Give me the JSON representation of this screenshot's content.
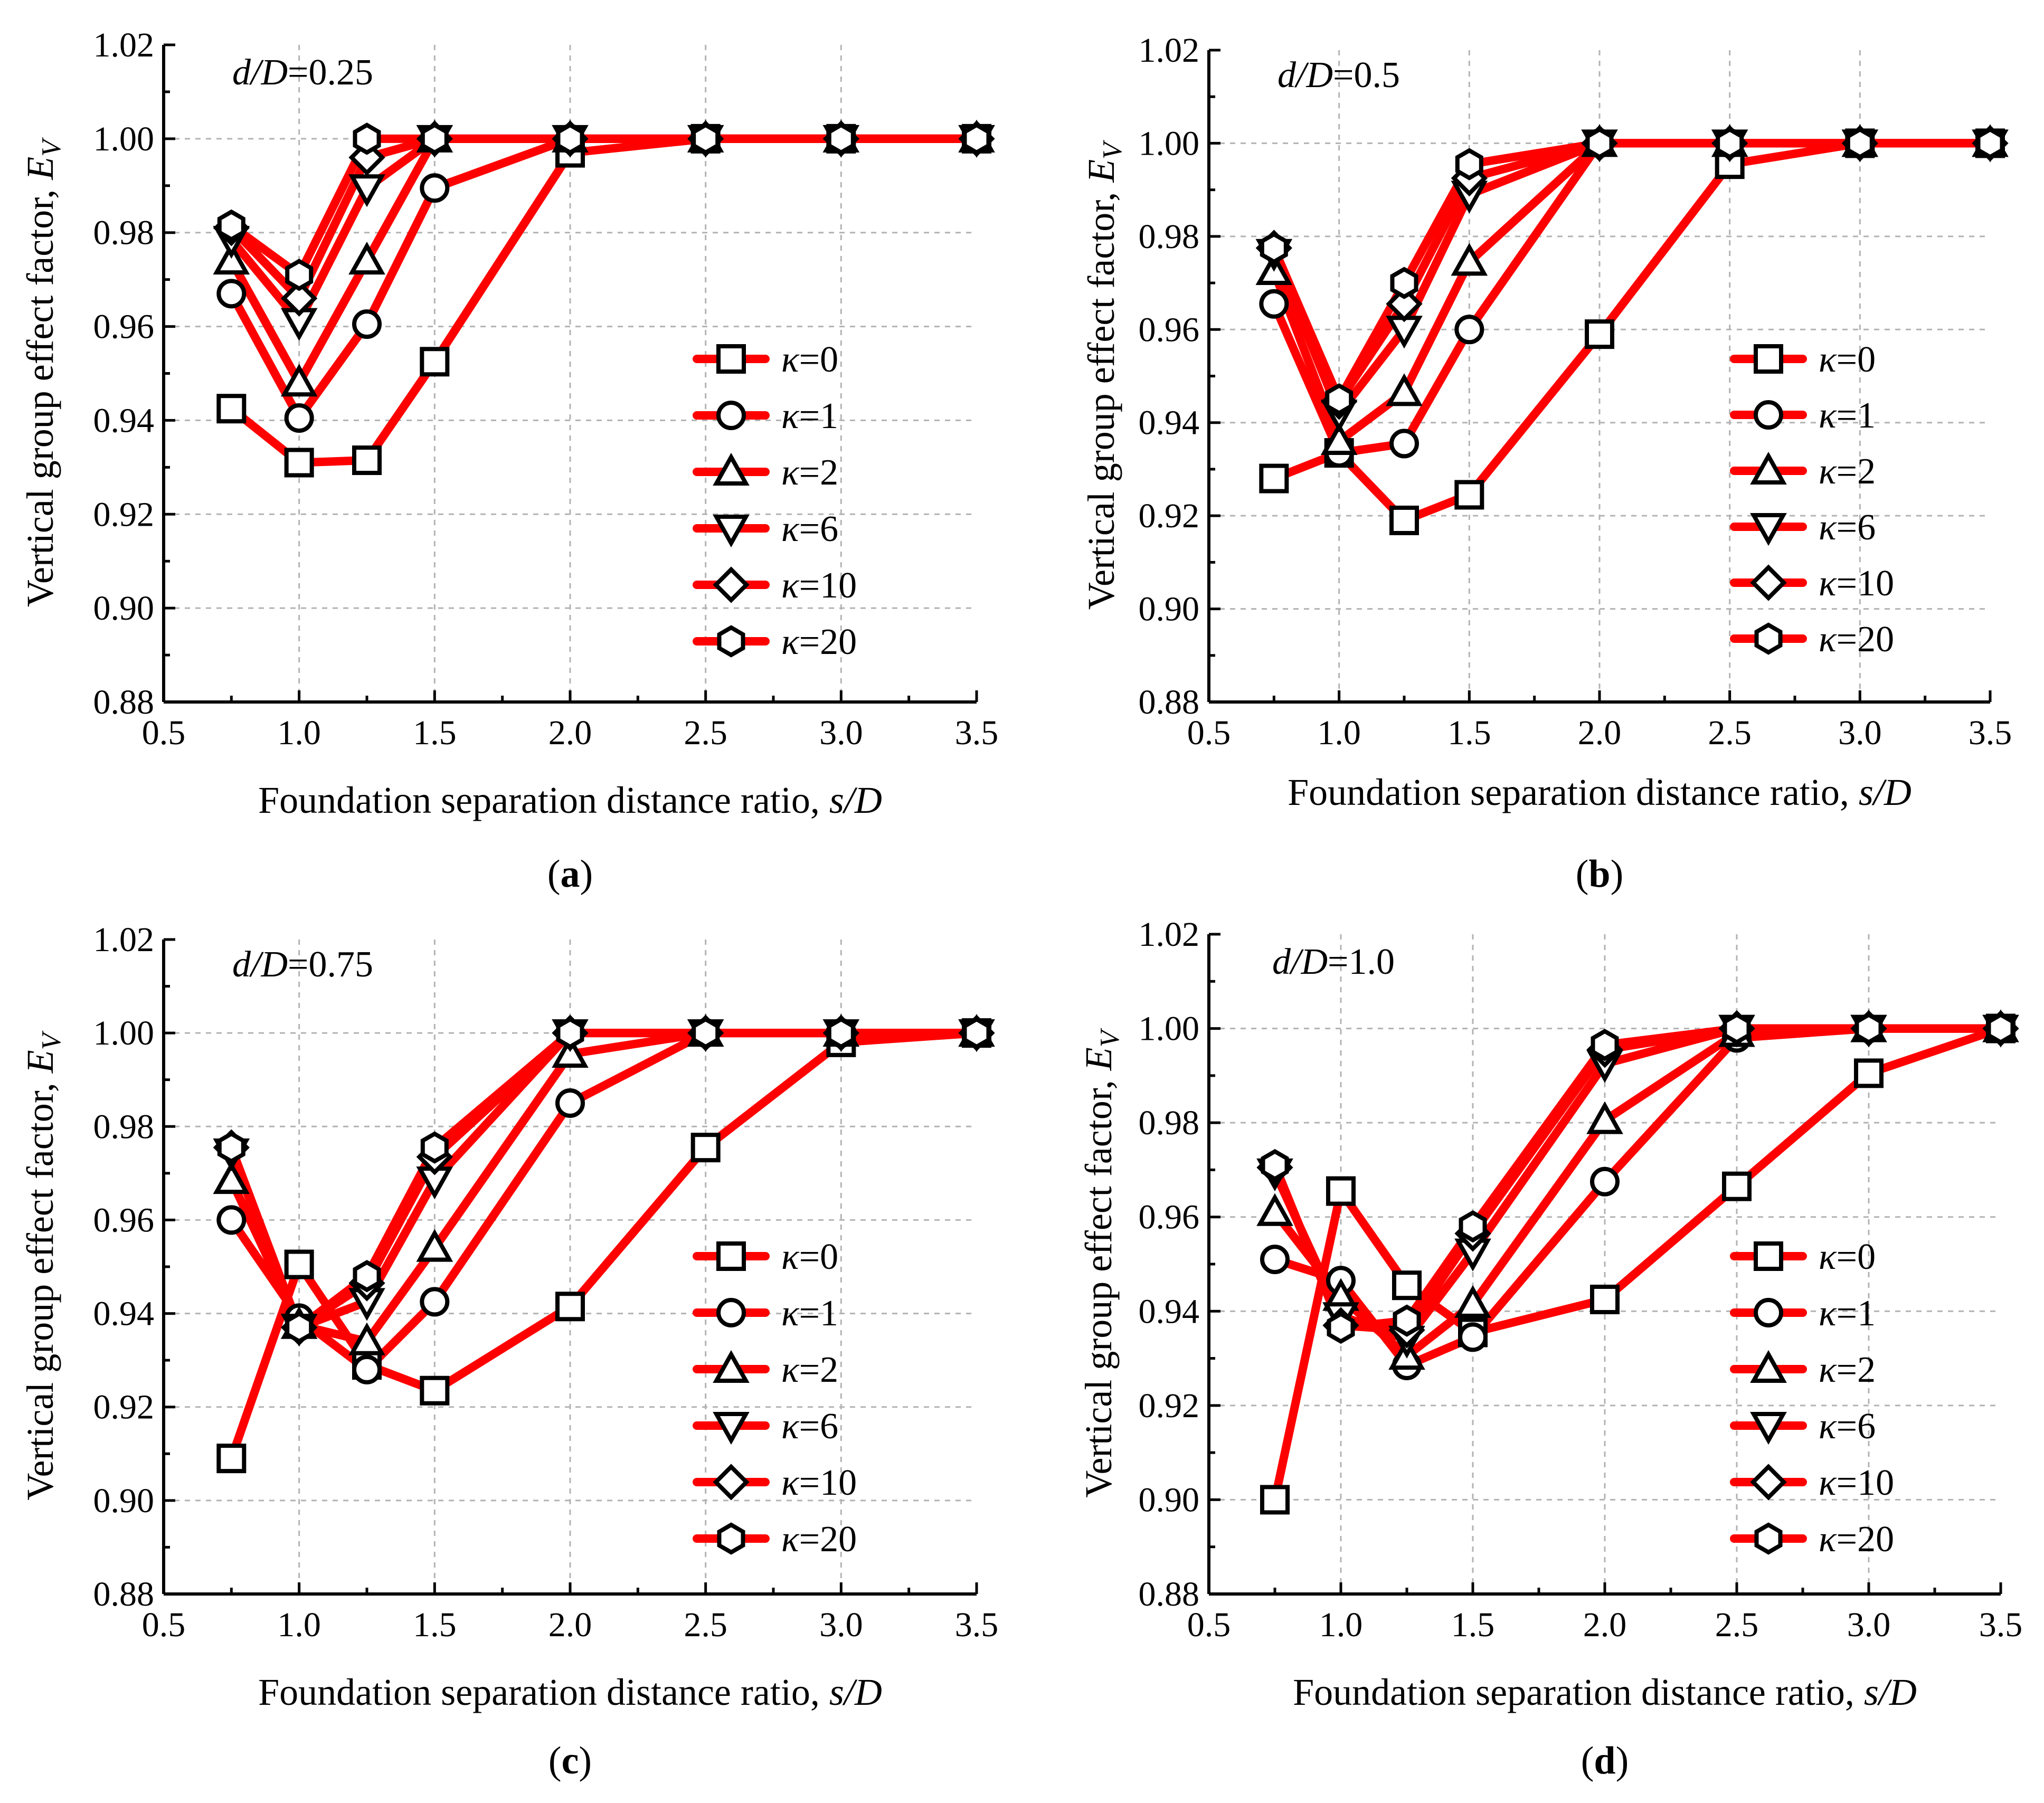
{
  "figure": {
    "series_color": "#ff0000",
    "marker_edge_color": "#000000",
    "marker_face_color": "#ffffff"
  },
  "chart_data": [
    {
      "panel": "(a)",
      "panel_prefix": "(",
      "panel_letter": "a",
      "panel_suffix": ")",
      "type": "line",
      "annotation": "d/D=0.25",
      "annotation_var": "d/D",
      "annotation_val": "=0.25",
      "xlabel": "Foundation separation distance ratio, s/D",
      "xlabel_text": "Foundation separation distance ratio, ",
      "xlabel_var": "s/D",
      "ylabel": "Vertical group effect factor, E_V",
      "ylabel_text": "Vertical group effect factor, ",
      "ylabel_var": "E",
      "ylabel_sub": "V",
      "xlim": [
        0.5,
        3.5
      ],
      "ylim": [
        0.88,
        1.02
      ],
      "xticks": [
        "0.5",
        "1.0",
        "1.5",
        "2.0",
        "2.5",
        "3.0",
        "3.5"
      ],
      "yticks": [
        "0.88",
        "0.90",
        "0.92",
        "0.94",
        "0.96",
        "0.98",
        "1.00",
        "1.02"
      ],
      "grid": true,
      "legend_position": "center-right",
      "x": [
        0.75,
        1.0,
        1.25,
        1.5,
        2.0,
        2.5,
        3.0,
        3.5
      ],
      "series": [
        {
          "name": "κ=0",
          "sym": "κ",
          "label": "=0",
          "marker": "square",
          "values": [
            0.9425,
            0.931,
            0.9315,
            0.9525,
            0.997,
            1.0,
            1.0,
            1.0
          ]
        },
        {
          "name": "κ=1",
          "sym": "κ",
          "label": "=1",
          "marker": "circle",
          "values": [
            0.967,
            0.9405,
            0.9605,
            0.9895,
            1.0,
            1.0,
            1.0,
            1.0
          ]
        },
        {
          "name": "κ=2",
          "sym": "κ",
          "label": "=2",
          "marker": "triangle-up",
          "values": [
            0.974,
            0.948,
            0.974,
            1.0,
            1.0,
            1.0,
            1.0,
            1.0
          ]
        },
        {
          "name": "κ=6",
          "sym": "κ",
          "label": "=6",
          "marker": "triangle-down",
          "values": [
            0.9785,
            0.961,
            0.9895,
            1.0,
            1.0,
            1.0,
            1.0,
            1.0
          ]
        },
        {
          "name": "κ=10",
          "sym": "κ",
          "label": "=10",
          "marker": "diamond",
          "values": [
            0.981,
            0.966,
            0.996,
            1.0,
            1.0,
            1.0,
            1.0,
            1.0
          ]
        },
        {
          "name": "κ=20",
          "sym": "κ",
          "label": "=20",
          "marker": "hexagon",
          "values": [
            0.9815,
            0.971,
            1.0,
            1.0,
            1.0,
            1.0,
            1.0,
            1.0
          ]
        }
      ]
    },
    {
      "panel": "(b)",
      "panel_prefix": "(",
      "panel_letter": "b",
      "panel_suffix": ")",
      "type": "line",
      "annotation": "d/D=0.5",
      "annotation_var": "d/D",
      "annotation_val": "=0.5",
      "xlabel": "Foundation separation distance ratio, s/D",
      "xlabel_text": "Foundation separation distance ratio, ",
      "xlabel_var": "s/D",
      "ylabel": "Vertical group effect factor, E_V",
      "ylabel_text": "Vertical group effect factor, ",
      "ylabel_var": "E",
      "ylabel_sub": "V",
      "xlim": [
        0.5,
        3.5
      ],
      "ylim": [
        0.88,
        1.02
      ],
      "xticks": [
        "0.5",
        "1.0",
        "1.5",
        "2.0",
        "2.5",
        "3.0",
        "3.5"
      ],
      "yticks": [
        "0.88",
        "0.90",
        "0.92",
        "0.94",
        "0.96",
        "0.98",
        "1.00",
        "1.02"
      ],
      "grid": true,
      "legend_position": "center-right",
      "x": [
        0.75,
        1.0,
        1.25,
        1.5,
        2.0,
        2.5,
        3.0,
        3.5
      ],
      "series": [
        {
          "name": "κ=0",
          "sym": "κ",
          "label": "=0",
          "marker": "square",
          "values": [
            0.928,
            0.9335,
            0.919,
            0.9245,
            0.959,
            0.9955,
            1.0,
            1.0
          ]
        },
        {
          "name": "κ=1",
          "sym": "κ",
          "label": "=1",
          "marker": "circle",
          "values": [
            0.9655,
            0.9335,
            0.9355,
            0.96,
            1.0,
            1.0,
            1.0,
            1.0
          ]
        },
        {
          "name": "κ=2",
          "sym": "κ",
          "label": "=2",
          "marker": "triangle-up",
          "values": [
            0.9725,
            0.936,
            0.9465,
            0.9745,
            1.0,
            1.0,
            1.0,
            1.0
          ]
        },
        {
          "name": "κ=6",
          "sym": "κ",
          "label": "=6",
          "marker": "triangle-down",
          "values": [
            0.9765,
            0.942,
            0.96,
            0.989,
            1.0,
            1.0,
            1.0,
            1.0
          ]
        },
        {
          "name": "κ=10",
          "sym": "κ",
          "label": "=10",
          "marker": "diamond",
          "values": [
            0.9775,
            0.9445,
            0.9655,
            0.9925,
            1.0,
            1.0,
            1.0,
            1.0
          ]
        },
        {
          "name": "κ=20",
          "sym": "κ",
          "label": "=20",
          "marker": "hexagon",
          "values": [
            0.9775,
            0.945,
            0.97,
            0.9955,
            1.0,
            1.0,
            1.0,
            1.0
          ]
        }
      ]
    },
    {
      "panel": "(c)",
      "panel_prefix": "(",
      "panel_letter": "c",
      "panel_suffix": ")",
      "type": "line",
      "annotation": "d/D=0.75",
      "annotation_var": "d/D",
      "annotation_val": "=0.75",
      "xlabel": "Foundation separation distance ratio, s/D",
      "xlabel_text": "Foundation separation distance ratio, ",
      "xlabel_var": "s/D",
      "ylabel": "Vertical group effect factor, E_V",
      "ylabel_text": "Vertical group effect factor, ",
      "ylabel_var": "E",
      "ylabel_sub": "V",
      "xlim": [
        0.5,
        3.5
      ],
      "ylim": [
        0.88,
        1.02
      ],
      "xticks": [
        "0.5",
        "1.0",
        "1.5",
        "2.0",
        "2.5",
        "3.0",
        "3.5"
      ],
      "yticks": [
        "0.88",
        "0.90",
        "0.92",
        "0.94",
        "0.96",
        "0.98",
        "1.00",
        "1.02"
      ],
      "grid": true,
      "legend_position": "center-right",
      "x": [
        0.75,
        1.0,
        1.25,
        1.5,
        2.0,
        2.5,
        3.0,
        3.5
      ],
      "series": [
        {
          "name": "κ=0",
          "sym": "κ",
          "label": "=0",
          "marker": "square",
          "values": [
            0.909,
            0.9505,
            0.929,
            0.9235,
            0.9415,
            0.9755,
            0.998,
            1.0
          ]
        },
        {
          "name": "κ=1",
          "sym": "κ",
          "label": "=1",
          "marker": "circle",
          "values": [
            0.96,
            0.939,
            0.928,
            0.9425,
            0.985,
            1.0,
            1.0,
            1.0
          ]
        },
        {
          "name": "κ=2",
          "sym": "κ",
          "label": "=2",
          "marker": "triangle-up",
          "values": [
            0.9685,
            0.9375,
            0.934,
            0.954,
            0.9955,
            1.0,
            1.0,
            1.0
          ]
        },
        {
          "name": "κ=6",
          "sym": "κ",
          "label": "=6",
          "marker": "triangle-down",
          "values": [
            0.9745,
            0.937,
            0.9425,
            0.9685,
            1.0,
            1.0,
            1.0,
            1.0
          ]
        },
        {
          "name": "κ=10",
          "sym": "κ",
          "label": "=10",
          "marker": "diamond",
          "values": [
            0.9755,
            0.937,
            0.9465,
            0.9735,
            1.0,
            1.0,
            1.0,
            1.0
          ]
        },
        {
          "name": "κ=20",
          "sym": "κ",
          "label": "=20",
          "marker": "hexagon",
          "values": [
            0.9755,
            0.937,
            0.948,
            0.9755,
            1.0,
            1.0,
            1.0,
            1.0
          ]
        }
      ]
    },
    {
      "panel": "(d)",
      "panel_prefix": "(",
      "panel_letter": "d",
      "panel_suffix": ")",
      "type": "line",
      "annotation": "d/D=1.0",
      "annotation_var": "d/D",
      "annotation_val": "=1.0",
      "xlabel": "Foundation separation distance ratio, s/D",
      "xlabel_text": "Foundation separation distance ratio, ",
      "xlabel_var": "s/D",
      "ylabel": "Vertical group effect factor, E_V",
      "ylabel_text": "Vertical group effect factor, ",
      "ylabel_var": "E",
      "ylabel_sub": "V",
      "xlim": [
        0.5,
        3.5
      ],
      "ylim": [
        0.88,
        1.02
      ],
      "xticks": [
        "0.5",
        "1.0",
        "1.5",
        "2.0",
        "2.5",
        "3.0",
        "3.5"
      ],
      "yticks": [
        "0.88",
        "0.90",
        "0.92",
        "0.94",
        "0.96",
        "0.98",
        "1.00",
        "1.02"
      ],
      "grid": true,
      "legend_position": "center-right",
      "x": [
        0.75,
        1.0,
        1.25,
        1.5,
        2.0,
        2.5,
        3.0,
        3.5
      ],
      "series": [
        {
          "name": "κ=0",
          "sym": "κ",
          "label": "=0",
          "marker": "square",
          "values": [
            0.9,
            0.9655,
            0.9455,
            0.9355,
            0.9425,
            0.9665,
            0.9905,
            1.0
          ]
        },
        {
          "name": "κ=1",
          "sym": "κ",
          "label": "=1",
          "marker": "circle",
          "values": [
            0.951,
            0.9465,
            0.9285,
            0.9345,
            0.9675,
            0.998,
            1.0,
            1.0
          ]
        },
        {
          "name": "κ=2",
          "sym": "κ",
          "label": "=2",
          "marker": "triangle-up",
          "values": [
            0.961,
            0.943,
            0.9305,
            0.9415,
            0.9805,
            0.999,
            1.0,
            1.0
          ]
        },
        {
          "name": "κ=6",
          "sym": "κ",
          "label": "=6",
          "marker": "triangle-down",
          "values": [
            0.9695,
            0.939,
            0.934,
            0.9525,
            0.9925,
            1.0,
            1.0,
            1.0
          ]
        },
        {
          "name": "κ=10",
          "sym": "κ",
          "label": "=10",
          "marker": "diamond",
          "values": [
            0.9705,
            0.937,
            0.936,
            0.9565,
            0.9955,
            1.0,
            1.0,
            1.0
          ]
        },
        {
          "name": "κ=20",
          "sym": "κ",
          "label": "=20",
          "marker": "hexagon",
          "values": [
            0.971,
            0.9365,
            0.938,
            0.958,
            0.9965,
            1.0,
            1.0,
            1.0
          ]
        }
      ]
    }
  ]
}
